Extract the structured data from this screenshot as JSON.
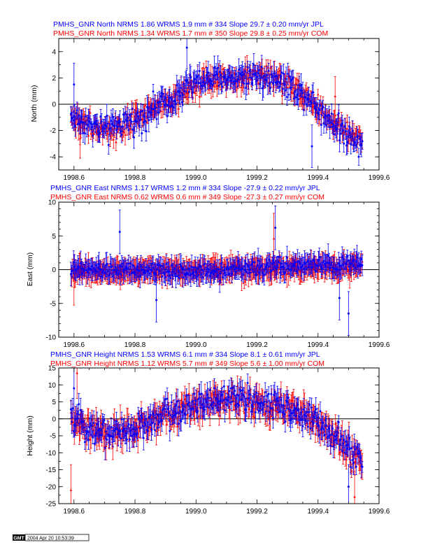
{
  "colors": {
    "jpl": "#0000ff",
    "com": "#ff0000",
    "axis": "#000000"
  },
  "stamp": {
    "logo": "GMT",
    "date": "2004 Apr 20 10:53:39"
  },
  "chart_data": [
    {
      "type": "scatter",
      "component": "North",
      "headers": [
        "PMHS_GNR North NRMS 1.86 WRMS  1.9 mm # 334 Slope   29.7 ±  0.20 mm/yr JPL",
        "PMHS_GNR North NRMS 1.34 WRMS  1.7 mm # 350 Slope   29.8 ±  0.25 mm/yr COM"
      ],
      "ylabel": "North (mm)",
      "xlim": [
        1998.55,
        1999.6
      ],
      "ylim": [
        -5,
        5
      ],
      "xticks": [
        "1998.6",
        "1998.8",
        "1999.0",
        "1999.2",
        "1999.4",
        "1999.6"
      ],
      "yticks": [
        "-4",
        "-2",
        "0",
        "2",
        "4"
      ],
      "series": [
        {
          "name": "JPL",
          "color": "#0000ff",
          "n": 334,
          "nrms": 1.86,
          "wrms_mm": 1.9,
          "slope_mm_yr": 29.7,
          "slope_sigma": 0.2,
          "anchors": [
            [
              1998.59,
              -0.9
            ],
            [
              1998.7,
              -2.0
            ],
            [
              1998.8,
              -1.2
            ],
            [
              1998.9,
              0.2
            ],
            [
              1999.0,
              1.7
            ],
            [
              1999.1,
              2.0
            ],
            [
              1999.2,
              2.3
            ],
            [
              1999.3,
              1.6
            ],
            [
              1999.38,
              0.3
            ],
            [
              1999.45,
              -1.5
            ],
            [
              1999.55,
              -3.0
            ]
          ],
          "noise_mm": 0.7,
          "sigma_mm": 0.65,
          "outliers": [
            [
              1998.6,
              1.5
            ],
            [
              1998.97,
              4.3
            ],
            [
              1999.38,
              -3.2
            ]
          ]
        },
        {
          "name": "COM",
          "color": "#ff0000",
          "n": 350,
          "nrms": 1.34,
          "wrms_mm": 1.7,
          "slope_mm_yr": 29.8,
          "slope_sigma": 0.25,
          "anchors": [
            [
              1998.59,
              -1.0
            ],
            [
              1998.7,
              -2.1
            ],
            [
              1998.8,
              -1.3
            ],
            [
              1998.9,
              0.1
            ],
            [
              1999.0,
              1.6
            ],
            [
              1999.1,
              2.0
            ],
            [
              1999.2,
              2.3
            ],
            [
              1999.3,
              1.6
            ],
            [
              1999.38,
              0.3
            ],
            [
              1999.45,
              -1.5
            ],
            [
              1999.55,
              -3.0
            ]
          ],
          "noise_mm": 0.6,
          "sigma_mm": 0.6,
          "outliers": [
            [
              1999.456,
              0.6
            ],
            [
              1998.62,
              -2.6
            ]
          ]
        }
      ]
    },
    {
      "type": "scatter",
      "component": "East",
      "headers": [
        "PMHS_GNR East NRMS 1.17 WRMS  1.2 mm # 334 Slope  -27.9 ±  0.22 mm/yr JPL",
        "PMHS_GNR East NRMS 0.62 WRMS  0.6 mm # 349 Slope  -27.3 ±  0.27 mm/yr COM"
      ],
      "ylabel": "East (mm)",
      "xlim": [
        1998.55,
        1999.6
      ],
      "ylim": [
        -10,
        10
      ],
      "xticks": [
        "1998.6",
        "1998.8",
        "1999.0",
        "1999.2",
        "1999.4",
        "1999.6"
      ],
      "yticks": [
        "-10",
        "-5",
        "0",
        "5",
        "10"
      ],
      "series": [
        {
          "name": "JPL",
          "color": "#0000ff",
          "n": 334,
          "nrms": 1.17,
          "wrms_mm": 1.2,
          "slope_mm_yr": -27.9,
          "slope_sigma": 0.22,
          "anchors": [
            [
              1998.59,
              0.0
            ],
            [
              1999.0,
              -0.3
            ],
            [
              1999.3,
              0.5
            ],
            [
              1999.55,
              0.8
            ]
          ],
          "noise_mm": 0.8,
          "sigma_mm": 1.3,
          "outliers": [
            [
              1998.75,
              5.6
            ],
            [
              1999.26,
              6.2
            ],
            [
              1999.5,
              -6.5
            ],
            [
              1999.47,
              -4.2
            ],
            [
              1998.87,
              -4.5
            ]
          ]
        },
        {
          "name": "COM",
          "color": "#ff0000",
          "n": 349,
          "nrms": 0.62,
          "wrms_mm": 0.6,
          "slope_mm_yr": -27.3,
          "slope_sigma": 0.27,
          "anchors": [
            [
              1998.59,
              -0.3
            ],
            [
              1999.0,
              0.0
            ],
            [
              1999.3,
              0.2
            ],
            [
              1999.55,
              0.5
            ]
          ],
          "noise_mm": 0.6,
          "sigma_mm": 1.5,
          "outliers": [
            [
              1999.255,
              4.6
            ],
            [
              1998.6,
              -1.5
            ]
          ]
        }
      ]
    },
    {
      "type": "scatter",
      "component": "Height",
      "headers": [
        "PMHS_GNR Height NRMS 1.53 WRMS  6.1 mm # 334 Slope    8.1 ±  0.61 mm/yr JPL",
        "PMHS_GNR Height NRMS 1.12 WRMS  5.7 mm # 349 Slope    5.6 ±  1.00 mm/yr COM"
      ],
      "ylabel": "Height (mm)",
      "xlim": [
        1998.55,
        1999.6
      ],
      "ylim": [
        -25,
        15
      ],
      "xticks": [
        "1998.6",
        "1998.8",
        "1999.0",
        "1999.2",
        "1999.4",
        "1999.6"
      ],
      "yticks": [
        "-25",
        "-20",
        "-15",
        "-10",
        "-5",
        "0",
        "5",
        "10",
        "15"
      ],
      "series": [
        {
          "name": "JPL",
          "color": "#0000ff",
          "n": 334,
          "nrms": 1.53,
          "wrms_mm": 6.1,
          "slope_mm_yr": 8.1,
          "slope_sigma": 0.61,
          "anchors": [
            [
              1998.59,
              0.0
            ],
            [
              1998.7,
              -4.0
            ],
            [
              1998.8,
              -3.0
            ],
            [
              1998.9,
              1.0
            ],
            [
              1999.0,
              5.0
            ],
            [
              1999.1,
              6.0
            ],
            [
              1999.2,
              5.0
            ],
            [
              1999.3,
              3.5
            ],
            [
              1999.38,
              0.0
            ],
            [
              1999.45,
              -5.0
            ],
            [
              1999.55,
              -13.0
            ]
          ],
          "noise_mm": 3.0,
          "sigma_mm": 2.6,
          "outliers": [
            [
              1998.6,
              9.0
            ],
            [
              1999.5,
              -20.0
            ]
          ]
        },
        {
          "name": "COM",
          "color": "#ff0000",
          "n": 349,
          "nrms": 1.12,
          "wrms_mm": 5.7,
          "slope_mm_yr": 5.6,
          "slope_sigma": 1.0,
          "anchors": [
            [
              1998.59,
              -1.0
            ],
            [
              1998.7,
              -4.5
            ],
            [
              1998.8,
              -3.0
            ],
            [
              1998.9,
              1.0
            ],
            [
              1999.0,
              4.5
            ],
            [
              1999.1,
              5.5
            ],
            [
              1999.2,
              5.0
            ],
            [
              1999.3,
              3.0
            ],
            [
              1999.38,
              0.0
            ],
            [
              1999.45,
              -5.0
            ],
            [
              1999.55,
              -13.5
            ]
          ],
          "noise_mm": 2.8,
          "sigma_mm": 3.0,
          "outliers": [
            [
              1998.59,
              -21.0
            ],
            [
              1998.61,
              13.5
            ],
            [
              1999.52,
              -23.0
            ]
          ]
        }
      ]
    }
  ]
}
